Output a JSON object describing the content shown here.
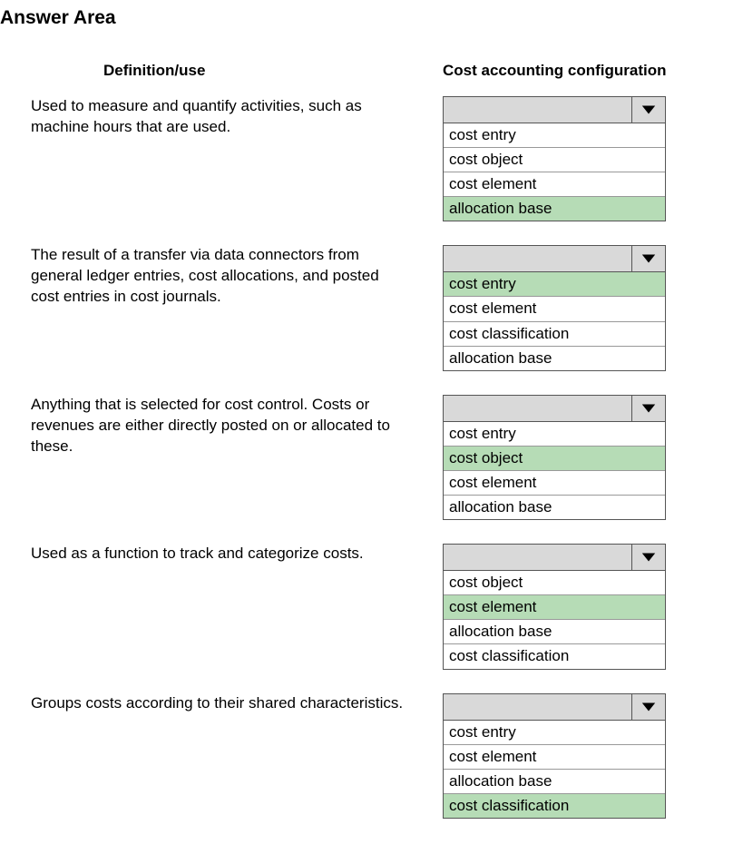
{
  "title": "Answer Area",
  "headers": {
    "left": "Definition/use",
    "right": "Cost accounting configuration"
  },
  "highlight_color": "#b6dcb6",
  "header_bg_color": "#d9d9d9",
  "rows": [
    {
      "definition": "Used to measure and quantify activities, such as machine hours that are used.",
      "options": [
        {
          "label": "cost entry",
          "highlighted": false
        },
        {
          "label": "cost object",
          "highlighted": false
        },
        {
          "label": "cost element",
          "highlighted": false
        },
        {
          "label": "allocation base",
          "highlighted": true
        }
      ]
    },
    {
      "definition": "The result of a transfer via data connectors from general ledger entries, cost allocations, and posted cost entries in cost journals.",
      "options": [
        {
          "label": "cost entry",
          "highlighted": true
        },
        {
          "label": "cost element",
          "highlighted": false
        },
        {
          "label": "cost classification",
          "highlighted": false
        },
        {
          "label": "allocation base",
          "highlighted": false
        }
      ]
    },
    {
      "definition": "Anything that is selected for cost control. Costs or revenues are either directly posted on or allocated to these.",
      "options": [
        {
          "label": "cost entry",
          "highlighted": false
        },
        {
          "label": "cost object",
          "highlighted": true
        },
        {
          "label": "cost element",
          "highlighted": false
        },
        {
          "label": "allocation base",
          "highlighted": false
        }
      ]
    },
    {
      "definition": "Used as a function to track and categorize costs.",
      "options": [
        {
          "label": "cost object",
          "highlighted": false
        },
        {
          "label": "cost element",
          "highlighted": true
        },
        {
          "label": "allocation base",
          "highlighted": false
        },
        {
          "label": "cost classification",
          "highlighted": false
        }
      ]
    },
    {
      "definition": "Groups costs according to their shared characteristics.",
      "options": [
        {
          "label": "cost entry",
          "highlighted": false
        },
        {
          "label": "cost element",
          "highlighted": false
        },
        {
          "label": "allocation base",
          "highlighted": false
        },
        {
          "label": "cost classification",
          "highlighted": true
        }
      ]
    }
  ]
}
